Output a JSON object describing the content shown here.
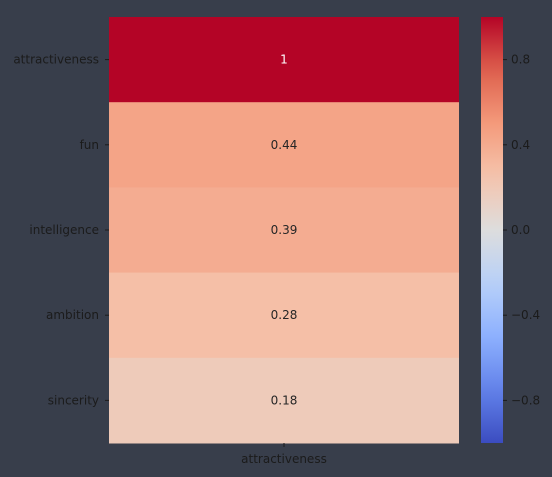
{
  "chart_data": {
    "type": "heatmap",
    "rows": [
      "attractiveness",
      "fun",
      "intelligence",
      "ambition",
      "sincerity"
    ],
    "columns": [
      "attractiveness"
    ],
    "values": [
      [
        1
      ],
      [
        0.44
      ],
      [
        0.39
      ],
      [
        0.28
      ],
      [
        0.18
      ]
    ],
    "value_labels": [
      "1",
      "0.44",
      "0.39",
      "0.28",
      "0.18"
    ],
    "colormap": "coolwarm",
    "vmin": -1,
    "vmax": 1,
    "colorbar": {
      "ticks": [
        0.8,
        0.4,
        0.0,
        -0.4,
        -0.8
      ],
      "tick_labels": [
        "0.8",
        "0.4",
        "0.0",
        "−0.4",
        "−0.8"
      ]
    },
    "title": "",
    "xlabel": "",
    "ylabel": ""
  },
  "colors": {
    "background": "#383e4b",
    "tick_label": "#1b1b1b",
    "annotation_dark": "#262626",
    "annotation_light": "#ffffff"
  }
}
